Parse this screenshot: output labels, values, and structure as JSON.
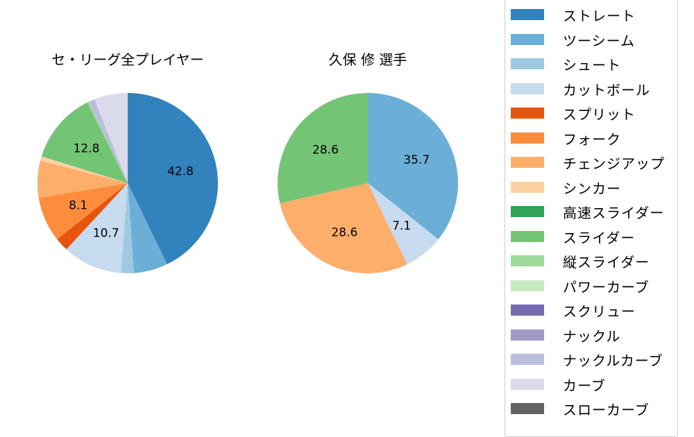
{
  "chart_data": [
    {
      "type": "pie",
      "title": "セ・リーグ全プレイヤー",
      "start_angle": 90,
      "counterclock": false,
      "categories": [
        "ストレート",
        "ツーシーム",
        "シュート",
        "カットボール",
        "スプリット",
        "フォーク",
        "チェンジアップ",
        "シンカー",
        "スライダー",
        "縦スライダー",
        "ナックルカーブ",
        "カーブ"
      ],
      "values": [
        42.8,
        6.1,
        2.3,
        10.7,
        2.4,
        8.1,
        6.6,
        0.8,
        12.8,
        0.3,
        1.1,
        6.0
      ],
      "labels_shown": [
        "42.8",
        "",
        "",
        "10.7",
        "",
        "8.1",
        "",
        "",
        "12.8",
        "",
        "",
        ""
      ],
      "colors": [
        "#3182bd",
        "#6baed6",
        "#9ecae1",
        "#c6dbef",
        "#e6550d",
        "#fd8d3c",
        "#fdae6b",
        "#fdd0a2",
        "#74c476",
        "#a1d99b",
        "#bcbddc",
        "#dadaeb"
      ]
    },
    {
      "type": "pie",
      "title": "久保 修  選手",
      "start_angle": 90,
      "counterclock": false,
      "categories": [
        "ツーシーム",
        "カットボール",
        "チェンジアップ",
        "スライダー"
      ],
      "values": [
        35.7,
        7.1,
        28.6,
        28.6
      ],
      "labels_shown": [
        "35.7",
        "7.1",
        "28.6",
        "28.6"
      ],
      "colors": [
        "#6baed6",
        "#c6dbef",
        "#fdae6b",
        "#74c476"
      ]
    }
  ],
  "titles": {
    "left": "セ・リーグ全プレイヤー",
    "right": "久保 修  選手"
  },
  "legend": [
    {
      "label": "ストレート",
      "color": "#3182bd"
    },
    {
      "label": "ツーシーム",
      "color": "#6baed6"
    },
    {
      "label": "シュート",
      "color": "#9ecae1"
    },
    {
      "label": "カットボール",
      "color": "#c6dbef"
    },
    {
      "label": "スプリット",
      "color": "#e6550d"
    },
    {
      "label": "フォーク",
      "color": "#fd8d3c"
    },
    {
      "label": "チェンジアップ",
      "color": "#fdae6b"
    },
    {
      "label": "シンカー",
      "color": "#fdd0a2"
    },
    {
      "label": "高速スライダー",
      "color": "#31a354"
    },
    {
      "label": "スライダー",
      "color": "#74c476"
    },
    {
      "label": "縦スライダー",
      "color": "#a1d99b"
    },
    {
      "label": "パワーカーブ",
      "color": "#c7e9c0"
    },
    {
      "label": "スクリュー",
      "color": "#756bb1"
    },
    {
      "label": "ナックル",
      "color": "#9e9ac8"
    },
    {
      "label": "ナックルカーブ",
      "color": "#bcbddc"
    },
    {
      "label": "カーブ",
      "color": "#dadaeb"
    },
    {
      "label": "スローカーブ",
      "color": "#636363"
    }
  ]
}
